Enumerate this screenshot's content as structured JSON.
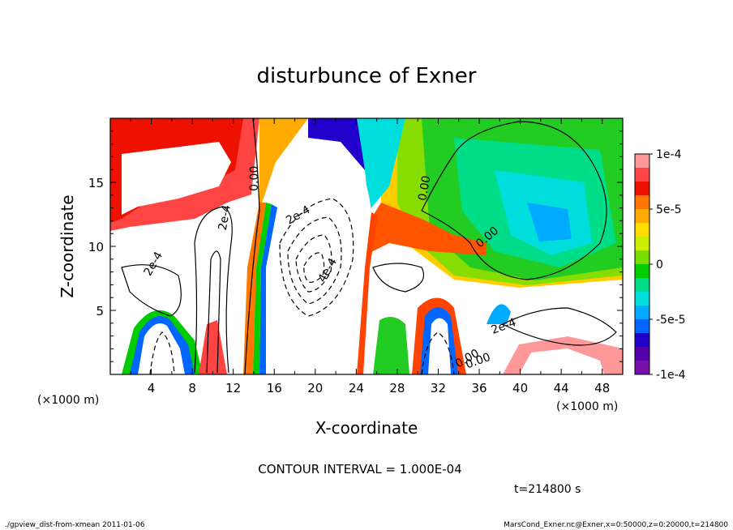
{
  "chart_data": {
    "type": "heatmap",
    "title": "disturbunce of Exner",
    "xlabel": "X-coordinate",
    "ylabel": "Z-coordinate",
    "x_unit": "(×1000 m)",
    "y_unit": "(×1000 m)",
    "xlim": [
      0,
      50
    ],
    "ylim": [
      0,
      20
    ],
    "x_ticks": [
      "4",
      "8",
      "12",
      "16",
      "20",
      "24",
      "28",
      "32",
      "36",
      "40",
      "44",
      "48"
    ],
    "y_ticks": [
      "5",
      "10",
      "15"
    ],
    "colorbar": {
      "range": [
        -0.0001,
        0.0001
      ],
      "labels": [
        "1e-4",
        "5e-5",
        "0",
        "-5e-5",
        "-1e-4"
      ],
      "label_values": [
        0.0001,
        5e-05,
        0,
        -5e-05,
        -0.0001
      ],
      "colors": [
        "#ff9999",
        "#ff4444",
        "#ee1100",
        "#ff7700",
        "#ffaa00",
        "#ffdd00",
        "#ccee00",
        "#77dd00",
        "#00cc00",
        "#00dd88",
        "#00dddd",
        "#00aaff",
        "#0066ff",
        "#2200cc",
        "#5500aa",
        "#7711aa"
      ]
    },
    "contour_labels": [
      "0.00",
      "2e-4",
      "2e-4",
      "2e-4",
      "4e-4",
      "0.00",
      "0.00",
      "0.00",
      "2e-4",
      "0.00"
    ],
    "contour_interval_text": "CONTOUR INTERVAL = 1.000E-04",
    "time_text": "t=214800 s"
  },
  "footer": {
    "left": "./gpview_dist-from-xmean  2011-01-06",
    "right": "MarsCond_Exner.nc@Exner,x=0:50000,z=0:20000,t=214800"
  }
}
